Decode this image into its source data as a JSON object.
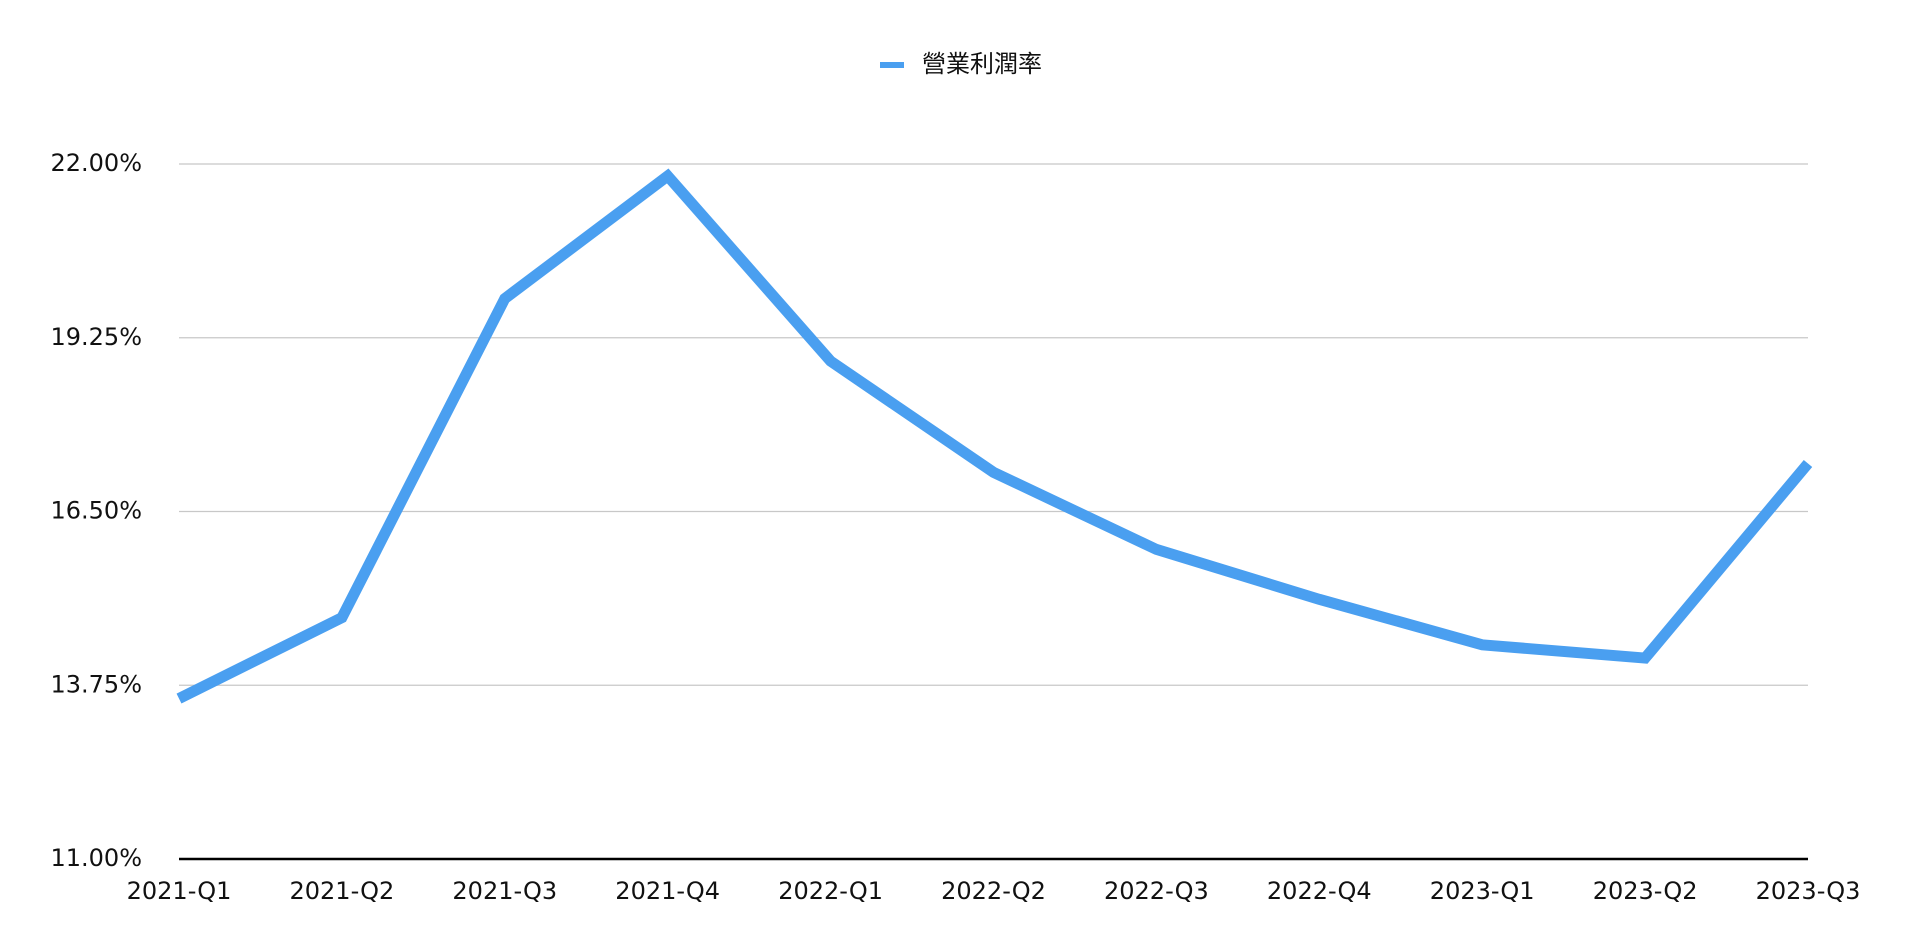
{
  "chart_data": {
    "type": "line",
    "categories": [
      "2021-Q1",
      "2021-Q2",
      "2021-Q3",
      "2021-Q4",
      "2022-Q1",
      "2022-Q2",
      "2022-Q3",
      "2022-Q4",
      "2023-Q1",
      "2023-Q2",
      "2023-Q3"
    ],
    "series": [
      {
        "name": "營業利潤率",
        "color": "#4a9ff0",
        "values": [
          13.54,
          14.82,
          19.87,
          21.81,
          18.88,
          17.12,
          15.9,
          15.11,
          14.39,
          14.18,
          17.26
        ]
      }
    ],
    "ylim": [
      11,
      22
    ],
    "yticks": [
      {
        "value": 11,
        "label": "11.00%"
      },
      {
        "value": 13.75,
        "label": "13.75%"
      },
      {
        "value": 16.5,
        "label": "16.50%"
      },
      {
        "value": 19.25,
        "label": "19.25%"
      },
      {
        "value": 22,
        "label": "22.00%"
      }
    ],
    "grid": true,
    "legend": "top"
  }
}
